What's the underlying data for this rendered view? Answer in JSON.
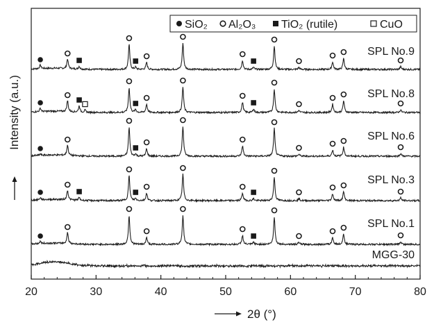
{
  "chart_data": {
    "type": "line",
    "title": "",
    "xlabel": "2θ (°)",
    "ylabel": "Intensity (a.u.)",
    "xlim": [
      20,
      80
    ],
    "xticks": [
      20,
      30,
      40,
      50,
      60,
      70,
      80
    ],
    "yticks_shown": false,
    "grid": false,
    "legend_position": "top-right",
    "legend": [
      {
        "symbol": "filled-circle",
        "label": "SiO₂"
      },
      {
        "symbol": "open-circle",
        "label": "Al₂O₃"
      },
      {
        "symbol": "filled-square",
        "label": "TiO₂ (rutile)"
      },
      {
        "symbol": "open-square",
        "label": "CuO"
      }
    ],
    "offset_order_top_to_bottom": [
      "SPL No.9",
      "SPL No.8",
      "SPL No.6",
      "SPL No.3",
      "SPL No.1",
      "MGG-30"
    ],
    "series": [
      {
        "name": "SPL No.9",
        "peaks": [
          {
            "x": 21.4,
            "height": 5,
            "phase": "SiO₂"
          },
          {
            "x": 25.6,
            "height": 14,
            "phase": "Al₂O₃"
          },
          {
            "x": 27.4,
            "height": 4,
            "phase": "TiO₂ (rutile)"
          },
          {
            "x": 35.1,
            "height": 36,
            "phase": "Al₂O₃"
          },
          {
            "x": 36.1,
            "height": 3,
            "phase": "TiO₂ (rutile)"
          },
          {
            "x": 37.8,
            "height": 10,
            "phase": "Al₂O₃"
          },
          {
            "x": 43.4,
            "height": 38,
            "phase": "Al₂O₃"
          },
          {
            "x": 52.6,
            "height": 13,
            "phase": "Al₂O₃"
          },
          {
            "x": 54.3,
            "height": 3,
            "phase": "TiO₂ (rutile)"
          },
          {
            "x": 57.5,
            "height": 34,
            "phase": "Al₂O₃"
          },
          {
            "x": 61.3,
            "height": 3,
            "phase": "Al₂O₃"
          },
          {
            "x": 66.5,
            "height": 11,
            "phase": "Al₂O₃"
          },
          {
            "x": 68.2,
            "height": 16,
            "phase": "Al₂O₃"
          },
          {
            "x": 77.0,
            "height": 4,
            "phase": "Al₂O₃"
          }
        ]
      },
      {
        "name": "SPL No.8",
        "peaks": [
          {
            "x": 21.4,
            "height": 5,
            "phase": "SiO₂"
          },
          {
            "x": 25.6,
            "height": 16,
            "phase": "Al₂O₃"
          },
          {
            "x": 27.4,
            "height": 9,
            "phase": "TiO₂ (rutile)"
          },
          {
            "x": 28.3,
            "height": 3,
            "phase": "CuO"
          },
          {
            "x": 35.1,
            "height": 36,
            "phase": "Al₂O₃"
          },
          {
            "x": 36.1,
            "height": 4,
            "phase": "TiO₂ (rutile)"
          },
          {
            "x": 37.8,
            "height": 12,
            "phase": "Al₂O₃"
          },
          {
            "x": 43.4,
            "height": 37,
            "phase": "Al₂O₃"
          },
          {
            "x": 52.6,
            "height": 15,
            "phase": "Al₂O₃"
          },
          {
            "x": 54.3,
            "height": 5,
            "phase": "TiO₂ (rutile)"
          },
          {
            "x": 57.5,
            "height": 34,
            "phase": "Al₂O₃"
          },
          {
            "x": 61.3,
            "height": 3,
            "phase": "Al₂O₃"
          },
          {
            "x": 66.5,
            "height": 12,
            "phase": "Al₂O₃"
          },
          {
            "x": 68.2,
            "height": 17,
            "phase": "Al₂O₃"
          },
          {
            "x": 77.0,
            "height": 4,
            "phase": "Al₂O₃"
          }
        ]
      },
      {
        "name": "SPL No.6",
        "peaks": [
          {
            "x": 21.4,
            "height": 2,
            "phase": "SiO₂"
          },
          {
            "x": 25.6,
            "height": 15,
            "phase": "Al₂O₃"
          },
          {
            "x": 35.1,
            "height": 42,
            "phase": "Al₂O₃"
          },
          {
            "x": 36.1,
            "height": 3,
            "phase": "TiO₂ (rutile)"
          },
          {
            "x": 37.8,
            "height": 11,
            "phase": "Al₂O₃"
          },
          {
            "x": 43.4,
            "height": 43,
            "phase": "Al₂O₃"
          },
          {
            "x": 52.6,
            "height": 15,
            "phase": "Al₂O₃"
          },
          {
            "x": 57.5,
            "height": 40,
            "phase": "Al₂O₃"
          },
          {
            "x": 61.3,
            "height": 3,
            "phase": "Al₂O₃"
          },
          {
            "x": 66.5,
            "height": 9,
            "phase": "Al₂O₃"
          },
          {
            "x": 68.2,
            "height": 13,
            "phase": "Al₂O₃"
          },
          {
            "x": 77.0,
            "height": 4,
            "phase": "Al₂O₃"
          }
        ]
      },
      {
        "name": "SPL No.3",
        "peaks": [
          {
            "x": 21.4,
            "height": 3,
            "phase": "SiO₂"
          },
          {
            "x": 25.6,
            "height": 14,
            "phase": "Al₂O₃"
          },
          {
            "x": 27.4,
            "height": 4,
            "phase": "TiO₂ (rutile)"
          },
          {
            "x": 35.1,
            "height": 36,
            "phase": "Al₂O₃"
          },
          {
            "x": 36.1,
            "height": 3,
            "phase": "TiO₂ (rutile)"
          },
          {
            "x": 37.8,
            "height": 11,
            "phase": "Al₂O₃"
          },
          {
            "x": 43.4,
            "height": 38,
            "phase": "Al₂O₃"
          },
          {
            "x": 52.6,
            "height": 11,
            "phase": "Al₂O₃"
          },
          {
            "x": 54.3,
            "height": 3,
            "phase": "TiO₂ (rutile)"
          },
          {
            "x": 57.5,
            "height": 34,
            "phase": "Al₂O₃"
          },
          {
            "x": 61.3,
            "height": 3,
            "phase": "Al₂O₃"
          },
          {
            "x": 66.5,
            "height": 10,
            "phase": "Al₂O₃"
          },
          {
            "x": 68.2,
            "height": 13,
            "phase": "Al₂O₃"
          },
          {
            "x": 77.0,
            "height": 4,
            "phase": "Al₂O₃"
          }
        ]
      },
      {
        "name": "SPL No.1",
        "peaks": [
          {
            "x": 21.4,
            "height": 3,
            "phase": "SiO₂"
          },
          {
            "x": 25.6,
            "height": 16,
            "phase": "Al₂O₃"
          },
          {
            "x": 35.1,
            "height": 42,
            "phase": "Al₂O₃"
          },
          {
            "x": 37.8,
            "height": 10,
            "phase": "Al₂O₃"
          },
          {
            "x": 43.4,
            "height": 42,
            "phase": "Al₂O₃"
          },
          {
            "x": 52.6,
            "height": 13,
            "phase": "Al₂O₃"
          },
          {
            "x": 54.3,
            "height": 3,
            "phase": "TiO₂ (rutile)"
          },
          {
            "x": 57.5,
            "height": 40,
            "phase": "Al₂O₃"
          },
          {
            "x": 61.3,
            "height": 3,
            "phase": "Al₂O₃"
          },
          {
            "x": 66.5,
            "height": 10,
            "phase": "Al₂O₃"
          },
          {
            "x": 68.2,
            "height": 15,
            "phase": "Al₂O₃"
          },
          {
            "x": 77.0,
            "height": 4,
            "phase": "Al₂O₃"
          }
        ]
      },
      {
        "name": "MGG-30",
        "amorphous_hump": {
          "center": 23.5,
          "height": 6
        },
        "peaks": []
      }
    ]
  }
}
